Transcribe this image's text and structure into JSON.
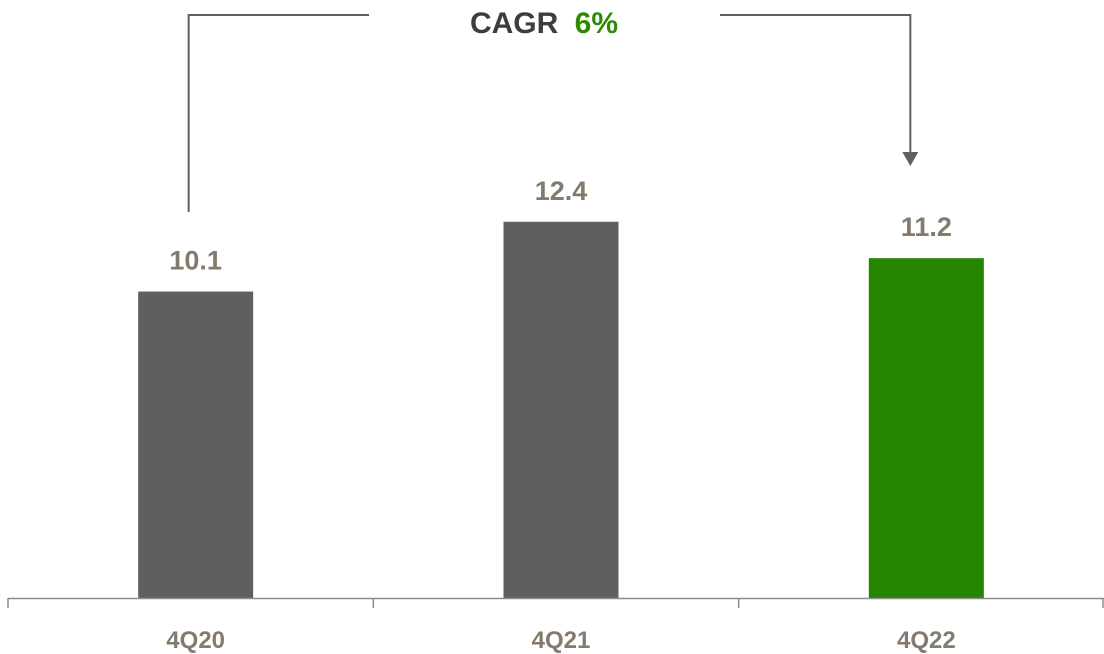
{
  "chart_data": {
    "type": "bar",
    "categories": [
      "4Q20",
      "4Q21",
      "4Q22"
    ],
    "values": [
      10.1,
      12.4,
      11.2
    ],
    "value_labels": [
      "10.1",
      "12.4",
      "11.2"
    ],
    "colors": [
      "#5f5f5d",
      "#5f5f5d",
      "#258400"
    ],
    "ylim": [
      0,
      14.6
    ],
    "annotation": {
      "label": "CAGR",
      "value": "6%",
      "label_color": "#3d3d3b",
      "value_color": "#2e8b00",
      "from": "4Q20",
      "to": "4Q22"
    },
    "axis_color": "#8c8c8c",
    "label_color": "#847a6e"
  }
}
